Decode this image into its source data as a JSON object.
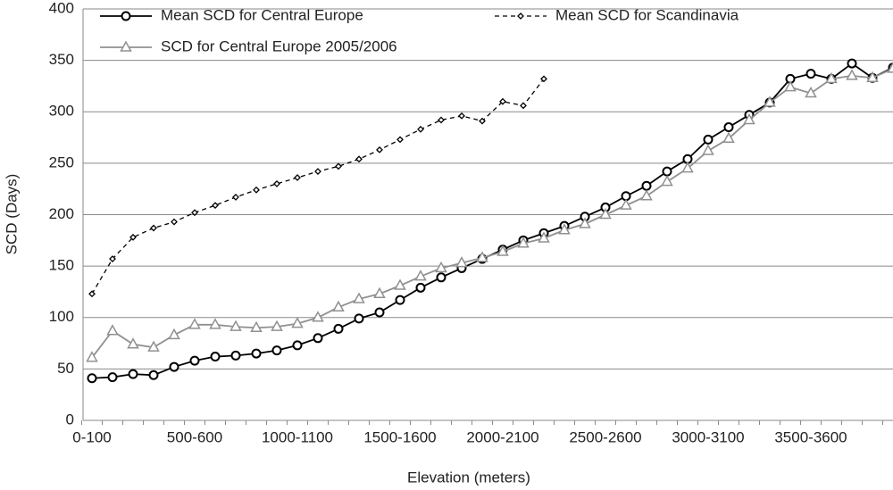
{
  "chart_data": {
    "type": "line",
    "x_label": "Elevation (meters)",
    "y_label": "SCD (Days)",
    "categories": [
      "0-100",
      null,
      null,
      null,
      null,
      "500-600",
      null,
      null,
      null,
      null,
      "1000-1100",
      null,
      null,
      null,
      null,
      "1500-1600",
      null,
      null,
      null,
      null,
      "2000-2100",
      null,
      null,
      null,
      null,
      "2500-2600",
      null,
      null,
      null,
      null,
      "3000-3100",
      null,
      null,
      null,
      null,
      "3500-3600",
      null,
      null,
      null,
      null
    ],
    "ylim": [
      0,
      400
    ],
    "yticks": [
      0,
      50,
      100,
      150,
      200,
      250,
      300,
      350,
      400
    ],
    "grid": true,
    "series": [
      {
        "name": "Mean SCD for Central Europe",
        "color": "#000000",
        "marker": "circle",
        "dash": "solid",
        "values": [
          41,
          42,
          45,
          44,
          52,
          58,
          62,
          63,
          65,
          68,
          73,
          80,
          89,
          99,
          105,
          117,
          129,
          139,
          148,
          157,
          166,
          175,
          182,
          189,
          198,
          207,
          218,
          228,
          242,
          254,
          273,
          285,
          297,
          309,
          332,
          337,
          332,
          347,
          333,
          343
        ]
      },
      {
        "name": "Mean SCD for Scandinavia",
        "color": "#000000",
        "marker": "diamond",
        "dash": "dashed",
        "values": [
          123,
          157,
          178,
          187,
          193,
          202,
          209,
          217,
          224,
          230,
          236,
          242,
          247,
          254,
          263,
          273,
          283,
          292,
          296,
          291,
          310,
          306,
          332,
          null,
          null,
          null,
          null,
          null,
          null,
          null,
          null,
          null,
          null,
          null,
          null,
          null,
          null,
          null,
          null,
          null
        ]
      },
      {
        "name": "SCD for Central Europe 2005/2006",
        "color": "#909090",
        "marker": "triangle",
        "dash": "solid",
        "values": [
          61,
          87,
          74,
          71,
          83,
          93,
          93,
          91,
          90,
          91,
          94,
          100,
          110,
          118,
          123,
          131,
          140,
          148,
          153,
          158,
          164,
          172,
          177,
          185,
          191,
          200,
          209,
          218,
          232,
          245,
          262,
          274,
          292,
          309,
          324,
          318,
          332,
          335,
          333,
          342
        ]
      }
    ]
  }
}
